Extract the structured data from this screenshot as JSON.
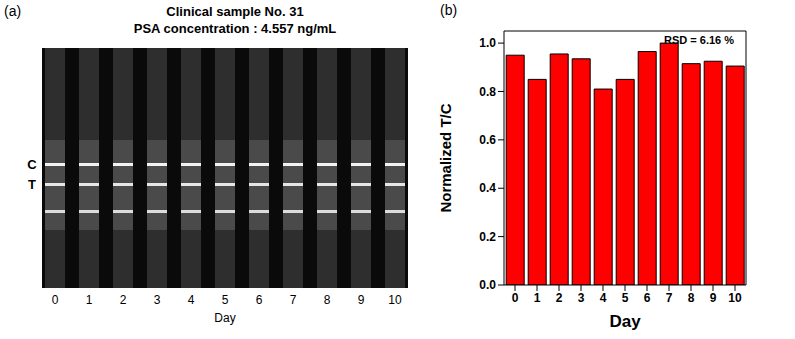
{
  "image": {
    "label": "(a)",
    "title": "Clinical sample No. 31",
    "subtitle": "PSA concentration : 4.557 ng/mL",
    "line_labels": [
      "C",
      "T"
    ],
    "strips": [
      "0",
      "1",
      "2",
      "3",
      "4",
      "5",
      "6",
      "7",
      "8",
      "9",
      "10"
    ],
    "x_label": "Day"
  },
  "chart_data": {
    "type": "bar",
    "panel_label": "(b)",
    "annotation": "RSD = 6.16 %",
    "x_label": "Day",
    "y_label": "Normalized T/C",
    "categories": [
      "0",
      "1",
      "2",
      "3",
      "4",
      "5",
      "6",
      "7",
      "8",
      "9",
      "10"
    ],
    "values": [
      0.95,
      0.85,
      0.955,
      0.935,
      0.81,
      0.85,
      0.965,
      1.0,
      0.915,
      0.925,
      0.905
    ],
    "color": "#ff0000",
    "ylim": [
      0,
      1.05
    ],
    "yticks": [
      {
        "value": 0,
        "label": "0.0"
      },
      {
        "value": 0.2,
        "label": "0.2"
      },
      {
        "value": 0.4,
        "label": "0.4"
      },
      {
        "value": 0.6,
        "label": "0.6"
      },
      {
        "value": 0.8,
        "label": "0.8"
      },
      {
        "value": 1.0,
        "label": "1.0"
      }
    ],
    "grid": false
  }
}
